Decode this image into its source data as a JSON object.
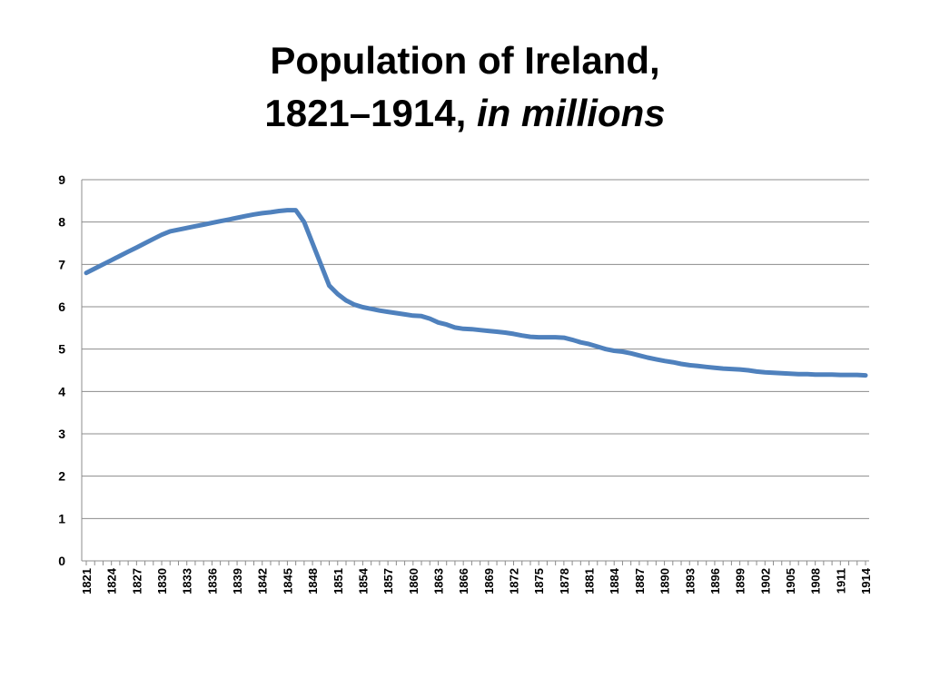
{
  "title": {
    "line1": "Population of Ireland,",
    "line2_main": "1821–1914,",
    "line2_italic": "in millions"
  },
  "colors": {
    "series": "#4f81bd",
    "grid": "#8c8c8c",
    "axis": "#8c8c8c"
  },
  "chart_data": {
    "type": "line",
    "title": "Population of Ireland, 1821–1914, in millions",
    "xlabel": "",
    "ylabel": "",
    "ylim": [
      0,
      9
    ],
    "yticks": [
      0,
      1,
      2,
      3,
      4,
      5,
      6,
      7,
      8,
      9
    ],
    "xlim": [
      1821,
      1914
    ],
    "xticks": [
      1821,
      1824,
      1827,
      1830,
      1833,
      1836,
      1839,
      1842,
      1845,
      1848,
      1851,
      1854,
      1857,
      1860,
      1863,
      1866,
      1869,
      1872,
      1875,
      1878,
      1881,
      1884,
      1887,
      1890,
      1893,
      1896,
      1899,
      1902,
      1905,
      1908,
      1911,
      1914
    ],
    "grid": true,
    "legend": "none",
    "series": [
      {
        "x": [
          1821,
          1822,
          1823,
          1824,
          1825,
          1826,
          1827,
          1828,
          1829,
          1830,
          1831,
          1832,
          1833,
          1834,
          1835,
          1836,
          1837,
          1838,
          1839,
          1840,
          1841,
          1842,
          1843,
          1844,
          1845,
          1846,
          1847,
          1848,
          1849,
          1850,
          1851,
          1852,
          1853,
          1854,
          1855,
          1856,
          1857,
          1858,
          1859,
          1860,
          1861,
          1862,
          1863,
          1864,
          1865,
          1866,
          1867,
          1868,
          1869,
          1870,
          1871,
          1872,
          1873,
          1874,
          1875,
          1876,
          1877,
          1878,
          1879,
          1880,
          1881,
          1882,
          1883,
          1884,
          1885,
          1886,
          1887,
          1888,
          1889,
          1890,
          1891,
          1892,
          1893,
          1894,
          1895,
          1896,
          1897,
          1898,
          1899,
          1900,
          1901,
          1902,
          1903,
          1904,
          1905,
          1906,
          1907,
          1908,
          1909,
          1910,
          1911,
          1912,
          1913,
          1914
        ],
        "values": [
          6.8,
          6.9,
          7.0,
          7.1,
          7.2,
          7.3,
          7.4,
          7.5,
          7.6,
          7.7,
          7.78,
          7.82,
          7.86,
          7.9,
          7.94,
          7.98,
          8.02,
          8.06,
          8.1,
          8.14,
          8.18,
          8.21,
          8.23,
          8.26,
          8.28,
          8.28,
          8.0,
          7.5,
          7.0,
          6.5,
          6.3,
          6.15,
          6.05,
          5.99,
          5.95,
          5.91,
          5.88,
          5.85,
          5.82,
          5.79,
          5.78,
          5.72,
          5.63,
          5.58,
          5.51,
          5.48,
          5.47,
          5.45,
          5.43,
          5.41,
          5.39,
          5.36,
          5.32,
          5.29,
          5.28,
          5.28,
          5.28,
          5.27,
          5.22,
          5.16,
          5.12,
          5.06,
          5.0,
          4.96,
          4.94,
          4.9,
          4.85,
          4.8,
          4.76,
          4.72,
          4.69,
          4.65,
          4.62,
          4.6,
          4.58,
          4.56,
          4.54,
          4.53,
          4.52,
          4.5,
          4.47,
          4.45,
          4.44,
          4.43,
          4.42,
          4.41,
          4.41,
          4.4,
          4.4,
          4.4,
          4.39,
          4.39,
          4.39,
          4.38
        ]
      }
    ]
  }
}
